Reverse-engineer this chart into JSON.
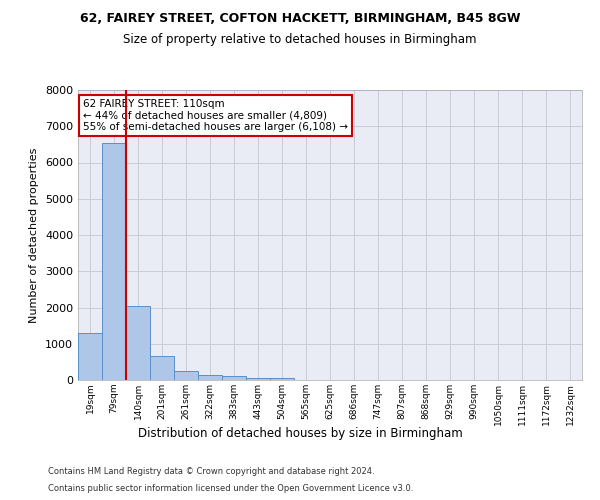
{
  "title1": "62, FAIREY STREET, COFTON HACKETT, BIRMINGHAM, B45 8GW",
  "title2": "Size of property relative to detached houses in Birmingham",
  "xlabel": "Distribution of detached houses by size in Birmingham",
  "ylabel": "Number of detached properties",
  "footer1": "Contains HM Land Registry data © Crown copyright and database right 2024.",
  "footer2": "Contains public sector information licensed under the Open Government Licence v3.0.",
  "bin_labels": [
    "19sqm",
    "79sqm",
    "140sqm",
    "201sqm",
    "261sqm",
    "322sqm",
    "383sqm",
    "443sqm",
    "504sqm",
    "565sqm",
    "625sqm",
    "686sqm",
    "747sqm",
    "807sqm",
    "868sqm",
    "929sqm",
    "990sqm",
    "1050sqm",
    "1111sqm",
    "1172sqm",
    "1232sqm"
  ],
  "bar_values": [
    1300,
    6550,
    2050,
    650,
    250,
    130,
    100,
    60,
    50,
    0,
    0,
    0,
    0,
    0,
    0,
    0,
    0,
    0,
    0,
    0,
    0
  ],
  "bar_color": "#aec6e8",
  "bar_edgecolor": "#5b8fc9",
  "grid_color": "#c8ccd8",
  "background_color": "#eaecf5",
  "vline_x": 1.5,
  "vline_color": "#cc0000",
  "annotation_line1": "62 FAIREY STREET: 110sqm",
  "annotation_line2": "← 44% of detached houses are smaller (4,809)",
  "annotation_line3": "55% of semi-detached houses are larger (6,108) →",
  "annotation_box_edgecolor": "#cc0000",
  "ylim_max": 8000,
  "yticks": [
    0,
    1000,
    2000,
    3000,
    4000,
    5000,
    6000,
    7000,
    8000
  ]
}
